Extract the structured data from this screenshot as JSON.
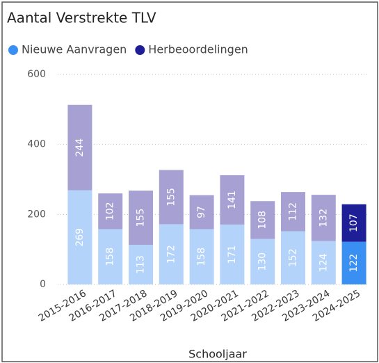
{
  "chart_data": {
    "type": "stacked_bar",
    "title": "Aantal Verstrekte TLV",
    "x_label": "Schooljaar",
    "categories": [
      "2015-2016",
      "2016-2017",
      "2017-2018",
      "2018-2019",
      "2019-2020",
      "2020-2021",
      "2021-2022",
      "2022-2023",
      "2023-2024",
      "2024-2025"
    ],
    "series": [
      {
        "name": "Nieuwe Aanvragen",
        "color": "#3a8ff2",
        "values": [
          269,
          158,
          113,
          172,
          158,
          171,
          130,
          152,
          124,
          122
        ],
        "point_colors": [
          "#b3d3fa",
          "#b3d3fa",
          "#b3d3fa",
          "#b3d3fa",
          "#b3d3fa",
          "#b3d3fa",
          "#b3d3fa",
          "#b3d3fa",
          "#b3d3fa",
          "#3a8ff2"
        ]
      },
      {
        "name": "Herbeoordelingen",
        "color": "#1e1f96",
        "values": [
          244,
          102,
          155,
          155,
          97,
          141,
          108,
          112,
          132,
          107
        ],
        "point_colors": [
          "#a6a1d2",
          "#a6a1d2",
          "#a6a1d2",
          "#a6a1d2",
          "#a6a1d2",
          "#a6a1d2",
          "#a6a1d2",
          "#a6a1d2",
          "#a6a1d2",
          "#1e1f96"
        ]
      }
    ],
    "ylim": [
      0,
      600
    ],
    "yticks": [
      0,
      200,
      400,
      600
    ],
    "grid": true
  }
}
